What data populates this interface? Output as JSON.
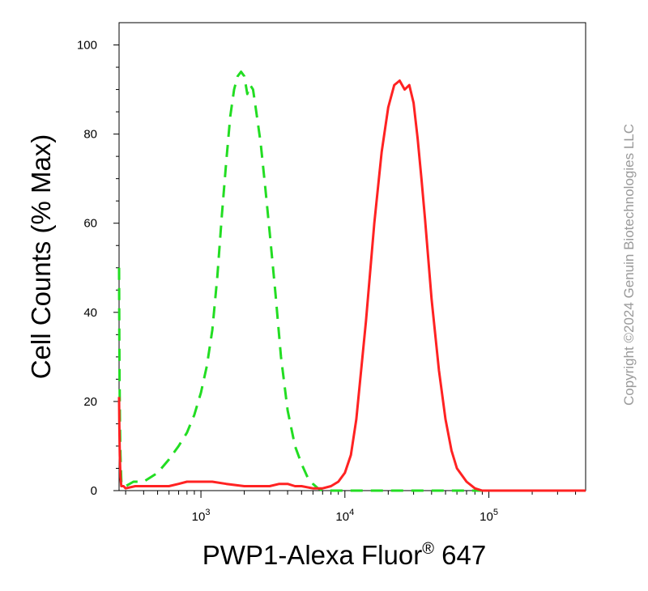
{
  "chart_data": {
    "type": "line",
    "title": "",
    "xlabel": "PWP1-Alexa Fluor",
    "xlabel_superscript": "®",
    "xlabel_suffix": " 647",
    "ylabel": "Cell Counts (% Max)",
    "x_scale": "log",
    "xlim": [
      270,
      470000
    ],
    "ylim": [
      0,
      105
    ],
    "y_ticks": [
      0,
      20,
      40,
      60,
      80,
      100
    ],
    "x_ticks": [
      {
        "value": 1000,
        "base": "10",
        "exp": "3"
      },
      {
        "value": 10000,
        "base": "10",
        "exp": "4"
      },
      {
        "value": 100000,
        "base": "10",
        "exp": "5"
      }
    ],
    "grid": false,
    "series": [
      {
        "color": "#22dd22",
        "dash": "dashed",
        "x": [
          270,
          271,
          272,
          274,
          276,
          280,
          285,
          300,
          340,
          400,
          500,
          600,
          700,
          800,
          900,
          1000,
          1100,
          1200,
          1300,
          1400,
          1500,
          1600,
          1700,
          1800,
          1900,
          2000,
          2100,
          2200,
          2300,
          2400,
          2600,
          2800,
          3000,
          3300,
          3600,
          4000,
          4500,
          5000,
          5500,
          6000,
          6500,
          7000,
          8000,
          10000,
          100000,
          470000
        ],
        "y": [
          50,
          35,
          25,
          15,
          8,
          2,
          1,
          1,
          2,
          2,
          4,
          7,
          10,
          13,
          17,
          22,
          28,
          36,
          48,
          62,
          74,
          84,
          90,
          93,
          94,
          93,
          89,
          91,
          90,
          86,
          78,
          68,
          58,
          44,
          30,
          18,
          10,
          6,
          3,
          1.5,
          0.5,
          0,
          0,
          0,
          0,
          0
        ]
      },
      {
        "color": "#ff2222",
        "dash": "solid",
        "x": [
          270,
          271,
          273,
          276,
          280,
          290,
          300,
          350,
          400,
          500,
          600,
          700,
          800,
          900,
          1000,
          1200,
          1500,
          2000,
          2500,
          3000,
          3500,
          4000,
          4500,
          5000,
          6000,
          7000,
          8000,
          9000,
          10000,
          11000,
          12000,
          14000,
          16000,
          18000,
          20000,
          22000,
          24000,
          26000,
          28000,
          30000,
          32000,
          34000,
          36000,
          40000,
          45000,
          50000,
          55000,
          60000,
          70000,
          80000,
          90000,
          100000,
          200000,
          470000
        ],
        "y": [
          21,
          15,
          8,
          3,
          1,
          1,
          0.5,
          1,
          1,
          1,
          1,
          1.5,
          2,
          2,
          2,
          2,
          1.5,
          1,
          1,
          1,
          1.5,
          1.5,
          1,
          1,
          0.5,
          0.5,
          1,
          2,
          4,
          8,
          16,
          38,
          60,
          76,
          86,
          91,
          92,
          90,
          91,
          87,
          79,
          70,
          61,
          43,
          27,
          16,
          9,
          5,
          2,
          0.5,
          0,
          0,
          0,
          0
        ]
      }
    ]
  },
  "watermark": "Copyright ©2024 Genuin Biotechnologies LLC"
}
